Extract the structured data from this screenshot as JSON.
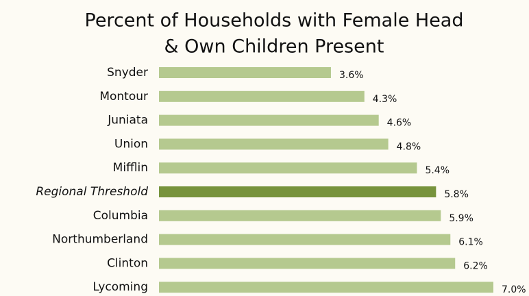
{
  "chart_data": {
    "type": "hbar",
    "title": [
      "Percent of Households with Female Head",
      "& Own Children Present"
    ],
    "categories": [
      "Snyder",
      "Montour",
      "Juniata",
      "Union",
      "Mifflin",
      "Regional Threshold",
      "Columbia",
      "Northumberland",
      "Clinton",
      "Lycoming"
    ],
    "values": [
      3.6,
      4.3,
      4.6,
      4.8,
      5.4,
      5.8,
      5.9,
      6.1,
      6.2,
      7.0
    ],
    "value_labels": [
      "3.6%",
      "4.3%",
      "4.6%",
      "4.8%",
      "5.4%",
      "5.8%",
      "5.9%",
      "6.1%",
      "6.2%",
      "7.0%"
    ],
    "color": "#b5c98f",
    "highlight": "Regional Threshold",
    "highlight_color": "#77933c",
    "xlim": [
      0,
      7
    ]
  }
}
